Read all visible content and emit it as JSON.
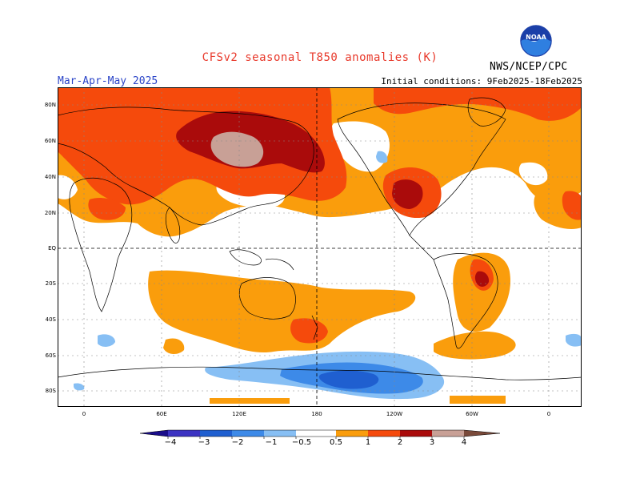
{
  "title": "CFSv2 seasonal T850 anomalies (K)",
  "period": "Mar-Apr-May 2025",
  "initial_conditions": "Initial conditions: 9Feb2025-18Feb2025",
  "agency": "NWS/NCEP/CPC",
  "logo_text": "NOAA",
  "lat_ticks": [
    "80N",
    "60N",
    "40N",
    "20N",
    "EQ",
    "20S",
    "40S",
    "60S",
    "80S"
  ],
  "lon_ticks": [
    "0",
    "60E",
    "120E",
    "180",
    "120W",
    "60W",
    "0"
  ],
  "colorbar": {
    "labels": [
      "−4",
      "−3",
      "−2",
      "−1",
      "−0.5",
      "0.5",
      "1",
      "2",
      "3",
      "4"
    ],
    "colors": {
      "lt_neg4": "#1a0d8a",
      "neg4_neg3": "#3c33c2",
      "neg3_neg2": "#1f5fd0",
      "neg2_neg1": "#3d8ae8",
      "neg1_neg05": "#87bff4",
      "neutral": "#ffffff",
      "p05_1": "#fa9d0c",
      "p1_2": "#f54a0c",
      "p2_3": "#aa0b0b",
      "p3_4": "#c8a096",
      "gt4": "#7a4a3a"
    }
  }
}
